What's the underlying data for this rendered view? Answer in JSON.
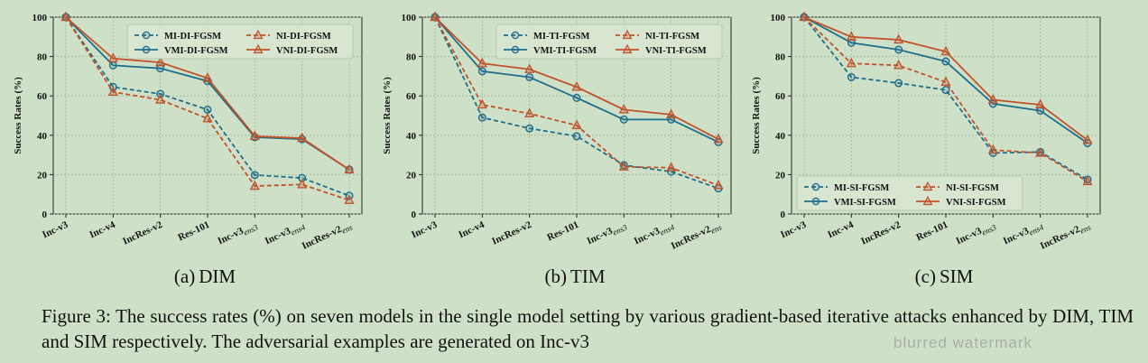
{
  "models": [
    "Inc-v3",
    "Inc-v4",
    "IncRes-v2",
    "Res-101",
    "Inc-v3ens3",
    "Inc-v3ens4",
    "IncRes-v2ens"
  ],
  "colors": {
    "mi": "#1f6e8c",
    "ni": "#c0532a",
    "grid": "#9bb59a"
  },
  "chart_data": [
    {
      "type": "line",
      "panel": "(a)",
      "name": "DIM",
      "xlabel": "",
      "ylabel": "Success Rates (%)",
      "ylim": [
        0,
        100
      ],
      "yticks": [
        0,
        20,
        40,
        60,
        80,
        100
      ],
      "categories": [
        "Inc-v3",
        "Inc-v4",
        "IncRes-v2",
        "Res-101",
        "Inc-v3ens3",
        "Inc-v3ens4",
        "IncRes-v2ens"
      ],
      "legend_position": "top-right",
      "series": [
        {
          "name": "MI-DI-FGSM",
          "values": [
            100,
            64.5,
            61,
            53,
            19.8,
            18.3,
            9.3
          ]
        },
        {
          "name": "NI-DI-FGSM",
          "values": [
            100,
            62,
            58,
            48.5,
            14.2,
            15,
            7
          ]
        },
        {
          "name": "VMI-DI-FGSM",
          "values": [
            100,
            75.5,
            74,
            67.5,
            39,
            38,
            22.5
          ]
        },
        {
          "name": "VNI-DI-FGSM",
          "values": [
            100,
            79,
            77,
            69,
            39.5,
            38.5,
            22.5
          ]
        }
      ]
    },
    {
      "type": "line",
      "panel": "(b)",
      "name": "TIM",
      "xlabel": "",
      "ylabel": "Success Rates (%)",
      "ylim": [
        0,
        100
      ],
      "yticks": [
        0,
        20,
        40,
        60,
        80,
        100
      ],
      "categories": [
        "Inc-v3",
        "Inc-v4",
        "IncRes-v2",
        "Res-101",
        "Inc-v3ens3",
        "Inc-v3ens4",
        "IncRes-v2ens"
      ],
      "legend_position": "top-right",
      "series": [
        {
          "name": "MI-TI-FGSM",
          "values": [
            100,
            49,
            43.5,
            39.5,
            24.8,
            21.5,
            13
          ]
        },
        {
          "name": "NI-TI-FGSM",
          "values": [
            100,
            55.5,
            51,
            45,
            24,
            23.5,
            14.5
          ]
        },
        {
          "name": "VMI-TI-FGSM",
          "values": [
            100,
            72.5,
            69.5,
            59,
            48,
            48,
            36.5
          ]
        },
        {
          "name": "VNI-TI-FGSM",
          "values": [
            100,
            76.5,
            73.5,
            64.5,
            53,
            50.5,
            38
          ]
        }
      ]
    },
    {
      "type": "line",
      "panel": "(c)",
      "name": "SIM",
      "xlabel": "",
      "ylabel": "Success Rates (%)",
      "ylim": [
        0,
        100
      ],
      "yticks": [
        0,
        20,
        40,
        60,
        80,
        100
      ],
      "categories": [
        "Inc-v3",
        "Inc-v4",
        "IncRes-v2",
        "Res-101",
        "Inc-v3ens3",
        "Inc-v3ens4",
        "IncRes-v2ens"
      ],
      "legend_position": "bottom-left",
      "series": [
        {
          "name": "MI-SI-FGSM",
          "values": [
            100,
            69.5,
            66.5,
            63,
            31,
            31.5,
            17.5
          ]
        },
        {
          "name": "NI-SI-FGSM",
          "values": [
            100,
            76.5,
            75.5,
            67,
            32.5,
            31,
            16.5
          ]
        },
        {
          "name": "VMI-SI-FGSM",
          "values": [
            100,
            87,
            83.5,
            77.5,
            56,
            52.5,
            36
          ]
        },
        {
          "name": "VNI-SI-FGSM",
          "values": [
            100,
            90,
            88.5,
            82.5,
            58,
            55.5,
            37.5
          ]
        }
      ]
    }
  ],
  "caption": "Figure 3: The success rates (%) on seven models in the single model setting by various gradient-based iterative attacks enhanced by DIM, TIM and SIM respectively. The adversarial examples are generated on Inc-v3",
  "watermark": "blurred watermark"
}
